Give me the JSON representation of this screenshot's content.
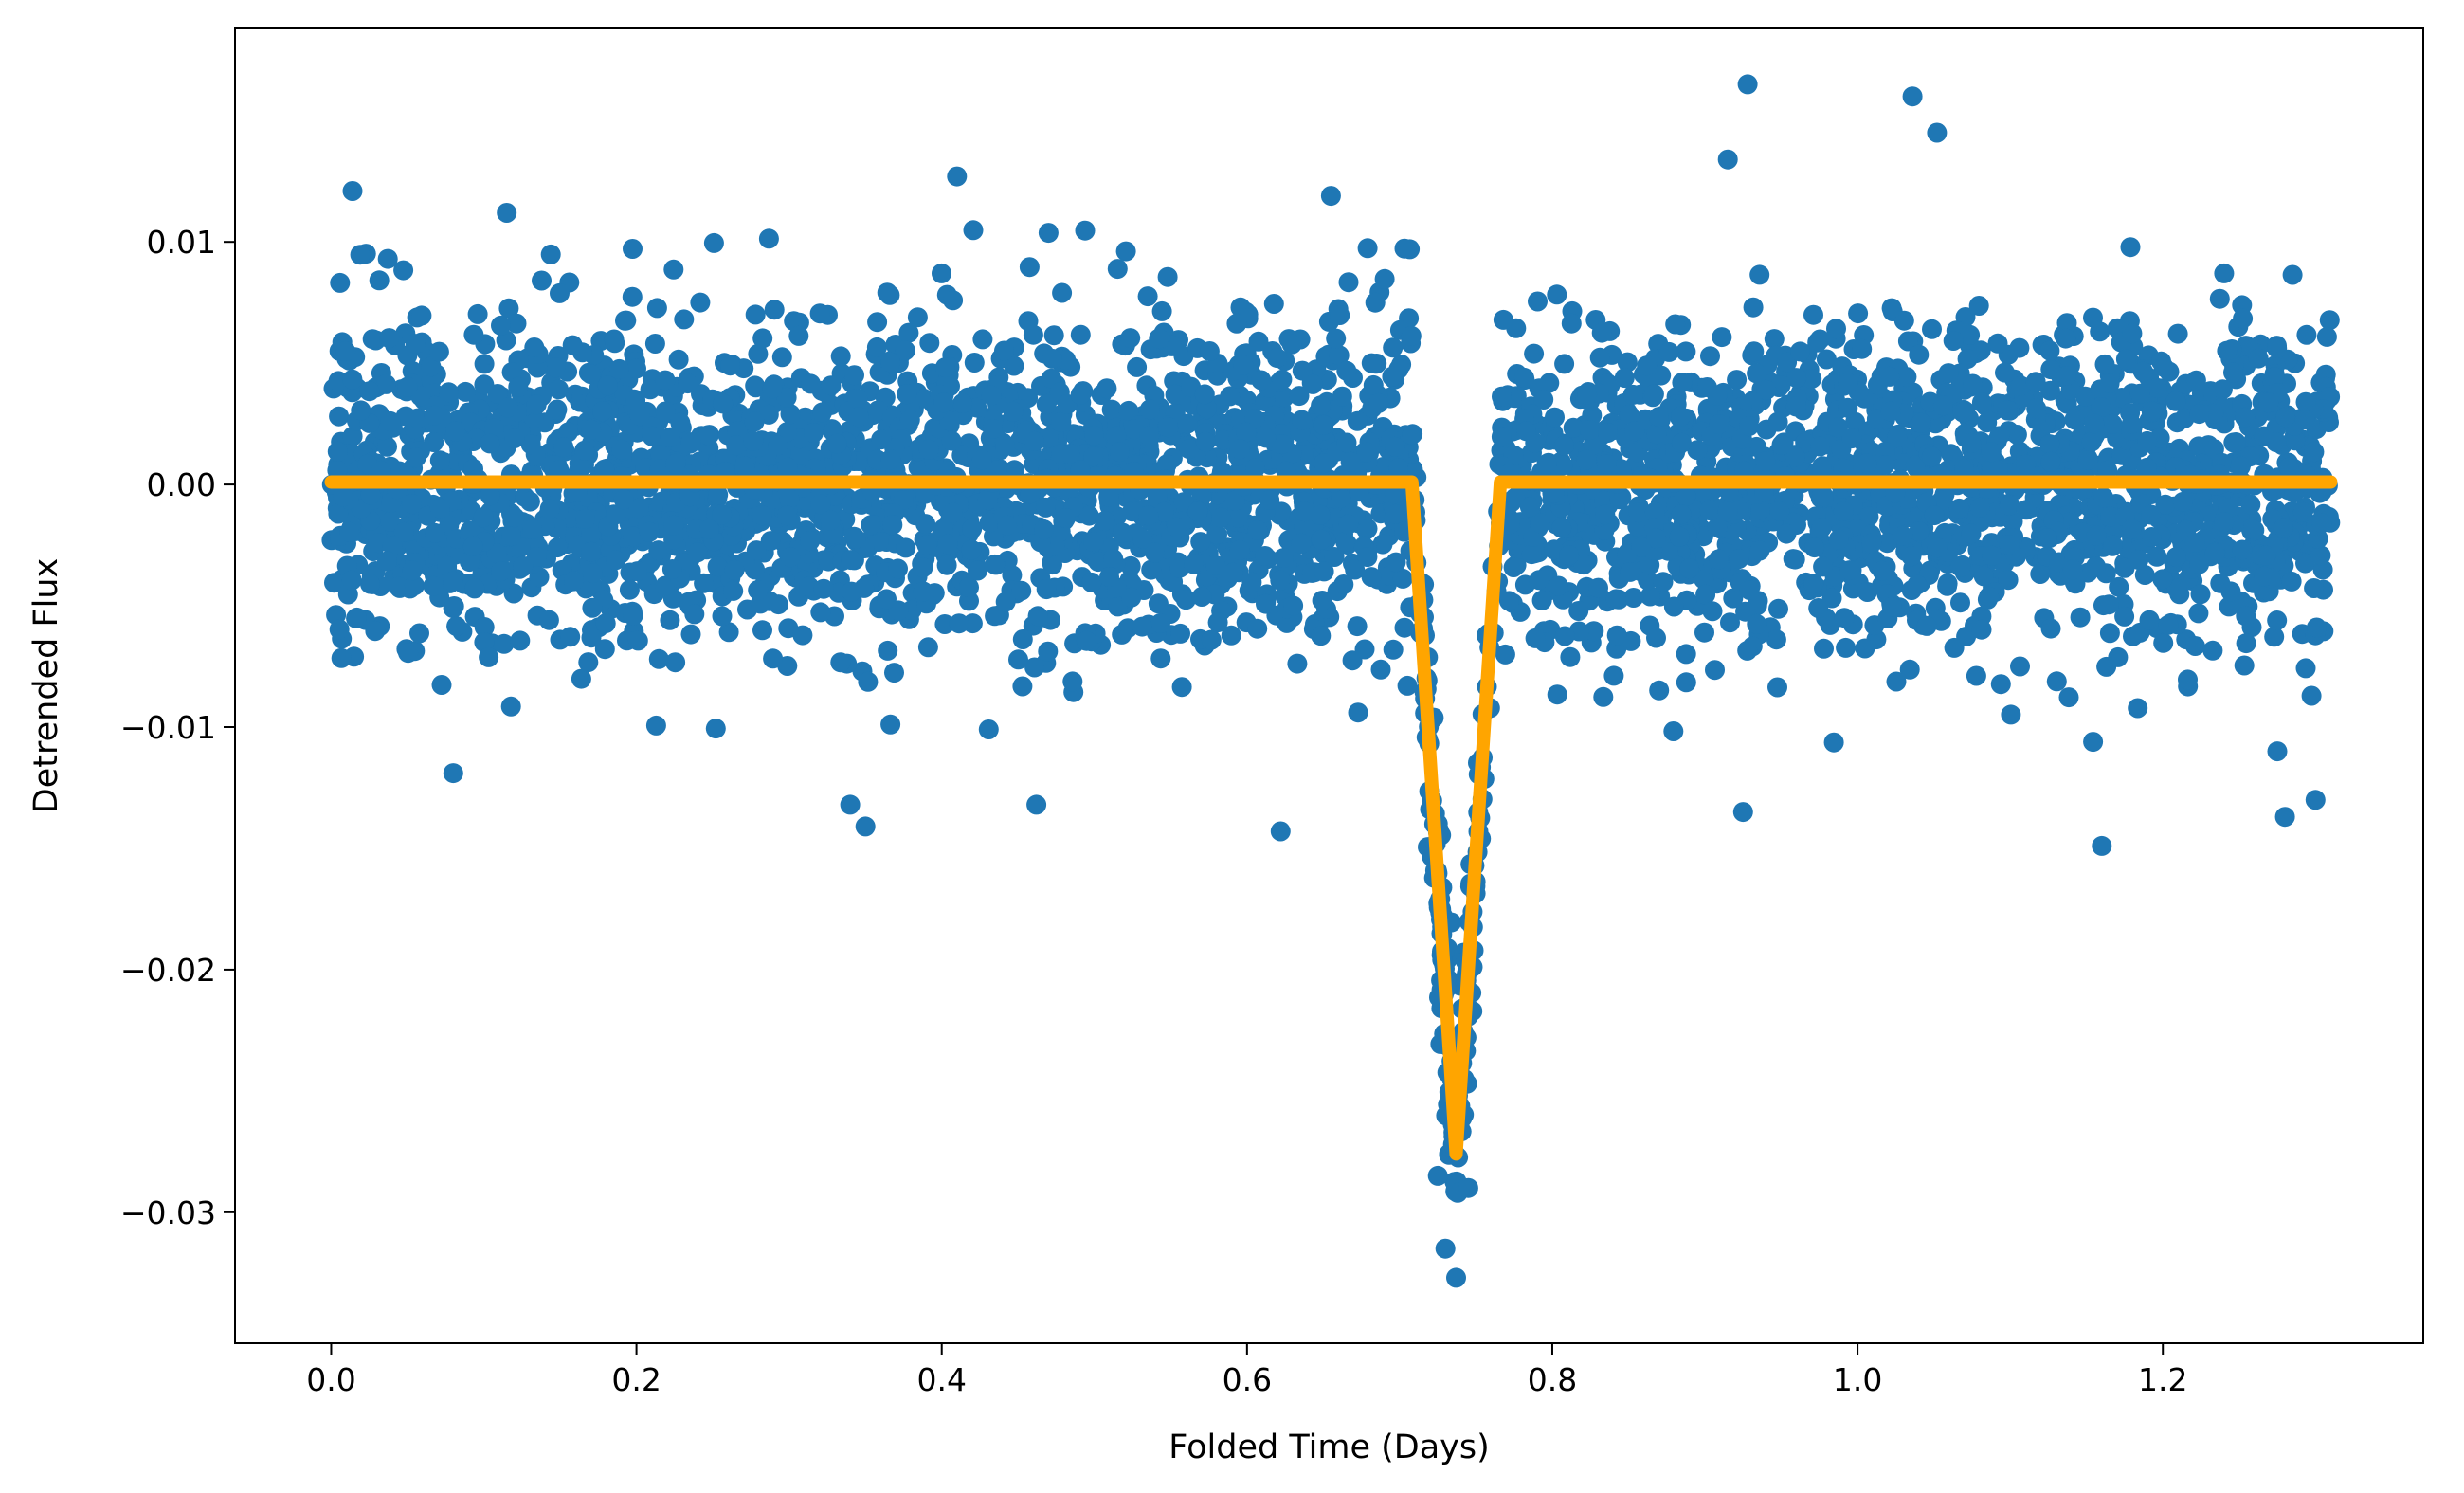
{
  "chart_data": {
    "type": "scatter",
    "xlabel": "Folded Time (Days)",
    "ylabel": "Detrended Flux",
    "xlim": [
      -0.063,
      1.3706
    ],
    "ylim": [
      -0.0354,
      0.0188
    ],
    "grid": false,
    "x_ticks": [
      {
        "value": 0.0,
        "label": "0.0"
      },
      {
        "value": 0.2,
        "label": "0.2"
      },
      {
        "value": 0.4,
        "label": "0.4"
      },
      {
        "value": 0.6,
        "label": "0.6"
      },
      {
        "value": 0.8,
        "label": "0.8"
      },
      {
        "value": 1.0,
        "label": "1.0"
      },
      {
        "value": 1.2,
        "label": "1.2"
      }
    ],
    "y_ticks": [
      {
        "value": 0.01,
        "label": "0.01"
      },
      {
        "value": 0.0,
        "label": "0.00"
      },
      {
        "value": -0.01,
        "label": "−0.01"
      },
      {
        "value": -0.02,
        "label": "−0.02"
      },
      {
        "value": -0.03,
        "label": "−0.03"
      }
    ],
    "series": [
      {
        "kind": "scatter",
        "color": "#1f77b4",
        "x_range": [
          0.0,
          1.31
        ],
        "baseline_noise_sigma": 0.0033,
        "transit": {
          "center": 0.737,
          "depth": 0.0278,
          "half_width": 0.029
        },
        "outliers": [
          [
            0.014,
            0.0121
          ],
          [
            0.115,
            0.0112
          ],
          [
            0.41,
            0.0127
          ],
          [
            0.655,
            0.0119
          ],
          [
            0.928,
            0.0165
          ],
          [
            1.036,
            0.016
          ],
          [
            1.052,
            0.0145
          ],
          [
            0.915,
            0.0134
          ],
          [
            0.08,
            -0.0119
          ],
          [
            0.34,
            -0.0132
          ],
          [
            0.35,
            -0.0141
          ],
          [
            0.622,
            -0.0143
          ],
          [
            0.462,
            -0.0132
          ],
          [
            0.925,
            -0.0135
          ],
          [
            1.16,
            -0.0149
          ],
          [
            1.28,
            -0.0137
          ],
          [
            1.3,
            -0.013
          ],
          [
            1.275,
            -0.011
          ],
          [
            0.73,
            -0.0315
          ],
          [
            0.737,
            -0.0327
          ],
          [
            0.738,
            -0.0292
          ],
          [
            0.745,
            -0.029
          ],
          [
            0.725,
            -0.0285
          ]
        ]
      },
      {
        "kind": "line",
        "color": "#ffa500",
        "x": [
          0.0,
          0.708,
          0.737,
          0.766,
          1.31
        ],
        "y": [
          0.0001,
          0.0001,
          -0.0276,
          0.0001,
          0.0001
        ]
      }
    ]
  }
}
